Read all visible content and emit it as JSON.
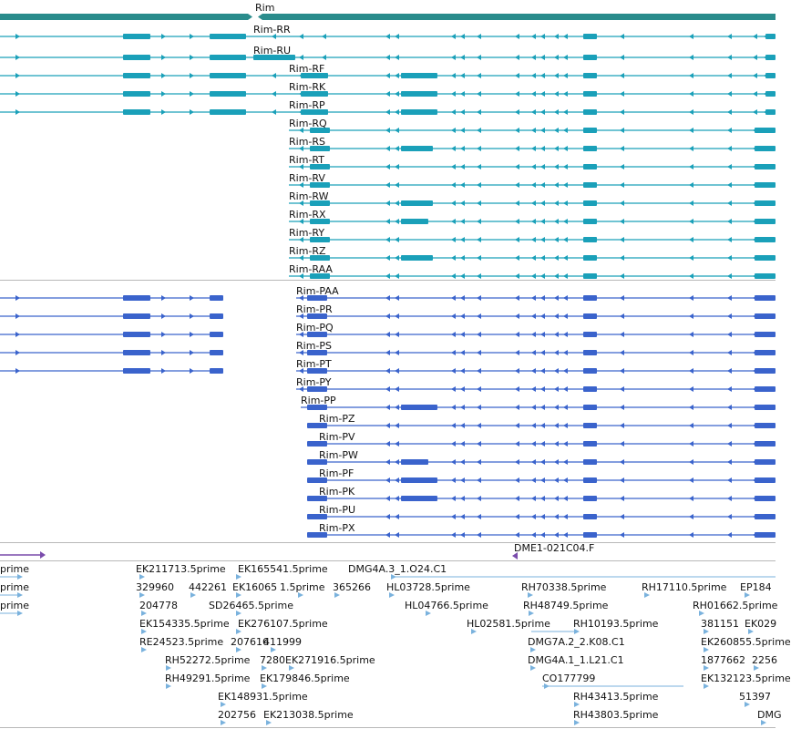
{
  "colors": {
    "gene": "#2a8c8c",
    "rim_r": "#1aa0b9",
    "rim_p": "#3a63cc",
    "est": "#7ab2dd",
    "cdna": "#7a4cac",
    "separator": "#b8b8b8"
  },
  "gene_track": {
    "label": "Rim"
  },
  "rim_r_track": {
    "transcripts": [
      "Rim-RR",
      "Rim-RU",
      "Rim-RF",
      "Rim-RK",
      "Rim-RP",
      "Rim-RQ",
      "Rim-RS",
      "Rim-RT",
      "Rim-RV",
      "Rim-RW",
      "Rim-RX",
      "Rim-RY",
      "Rim-RZ",
      "Rim-RAA"
    ]
  },
  "rim_p_track": {
    "transcripts": [
      "Rim-PAA",
      "Rim-PR",
      "Rim-PQ",
      "Rim-PS",
      "Rim-PT",
      "Rim-PY",
      "Rim-PP",
      "Rim-PZ",
      "Rim-PV",
      "Rim-PW",
      "Rim-PF",
      "Rim-PK",
      "Rim-PU",
      "Rim-PX"
    ]
  },
  "cdna_track": {
    "label": "DME1-021C04.F"
  },
  "est_track": {
    "labels": [
      "prime",
      "prime",
      "prime",
      "EK211713.5prime",
      "EK165541.5prime",
      "DMG4A.3_1.O24.C1",
      "329960",
      "442261",
      "EK16065",
      "1.5prime",
      "365266",
      "HL03728.5prime",
      "RH70338.5prime",
      "RH17110.5prime",
      "EP184",
      "204778",
      "SD26465.5prime",
      "HL04766.5prime",
      "RH48749.5prime",
      "RH01662.5prime",
      "EK154335.5prime",
      "EK276107.5prime",
      "HL02581.5prime",
      "RH10193.5prime",
      "381151",
      "EK029",
      "RE24523.5prime",
      "207616",
      "411999",
      "DMG7A.2_2.K08.C1",
      "EK260855.5prime",
      "RH52272.5prime",
      "7280",
      "EK271916.5prime",
      "DMG4A.1_1.L21.C1",
      "1877662",
      "2256",
      "RH49291.5prime",
      "EK179846.5prime",
      "CO177799",
      "EK132123.5prime",
      "EK148931.5prime",
      "RH43413.5prime",
      "51397",
      "202756",
      "EK213038.5prime",
      "RH43803.5prime",
      "DMG"
    ]
  }
}
